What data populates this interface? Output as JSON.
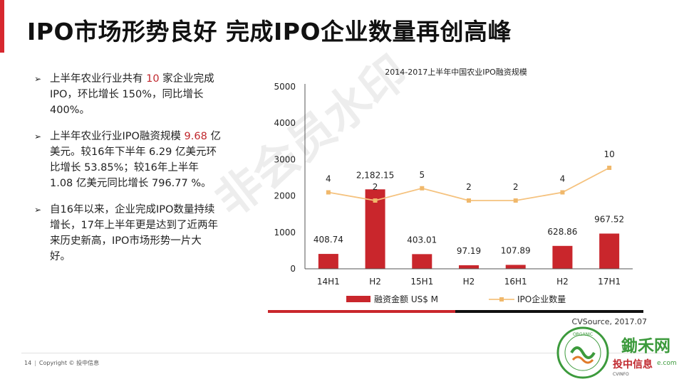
{
  "header": {
    "title": "IPO市场形势良好 完成IPO企业数量再创高峰"
  },
  "bullets": [
    {
      "p1": "上半年农业行业共有 ",
      "h1": "10",
      "p2": " 家企业完成IPO，环比增长 150%，同比增长 400%。"
    },
    {
      "p1": "上半年农业行业IPO融资规模 ",
      "h1": "9.68",
      "p2": " 亿美元。较16年下半年 6.29 亿美元环比增长 53.85%；较16年上半年 1.08 亿美元同比增长 796.77 %。"
    },
    {
      "p1": "自16年以来，企业完成IPO数量持续增长，17年上半年更是达到了近两年来历史新高，IPO市场形势一片大好。",
      "h1": "",
      "p2": ""
    }
  ],
  "source": "CVSource, 2017.07",
  "footer": {
    "page": "14",
    "copyright": "Copyright © 投中信息"
  },
  "watermark": "非会员水印",
  "logo": {
    "ring_text": "ORGANIC",
    "mark": "鋤禾网",
    "url_fragment": "e.com",
    "brand": "投中信息",
    "brand_en": "CVINFO"
  },
  "colors": {
    "accent": "#d7282f",
    "bar": "#c9262c",
    "line": "#f5c27e",
    "line_marker": "#f0b86b",
    "logo_green": "#3c9a3c"
  },
  "chart_data": {
    "type": "bar",
    "title": "2014-2017上半年中国农业IPO融资规模",
    "categories": [
      "14H1",
      "H2",
      "15H1",
      "H2",
      "16H1",
      "H2",
      "17H1"
    ],
    "ylim": [
      0,
      5000
    ],
    "yticks": [
      0,
      1000,
      2000,
      3000,
      4000,
      5000
    ],
    "grid": false,
    "legend_position": "bottom",
    "series": [
      {
        "name": "融资金额 US$ M",
        "type": "bar",
        "values": [
          408.74,
          2182.15,
          403.01,
          97.19,
          107.89,
          628.86,
          967.52
        ],
        "labels": [
          "408.74",
          "2,182.15",
          "403.01",
          "97.19",
          "107.89",
          "628.86",
          "967.52"
        ]
      },
      {
        "name": "IPO企业数量",
        "type": "line",
        "values": [
          4,
          2,
          5,
          2,
          2,
          4,
          10
        ],
        "labels": [
          "4",
          "2",
          "5",
          "2",
          "2",
          "4",
          "10"
        ]
      }
    ]
  }
}
